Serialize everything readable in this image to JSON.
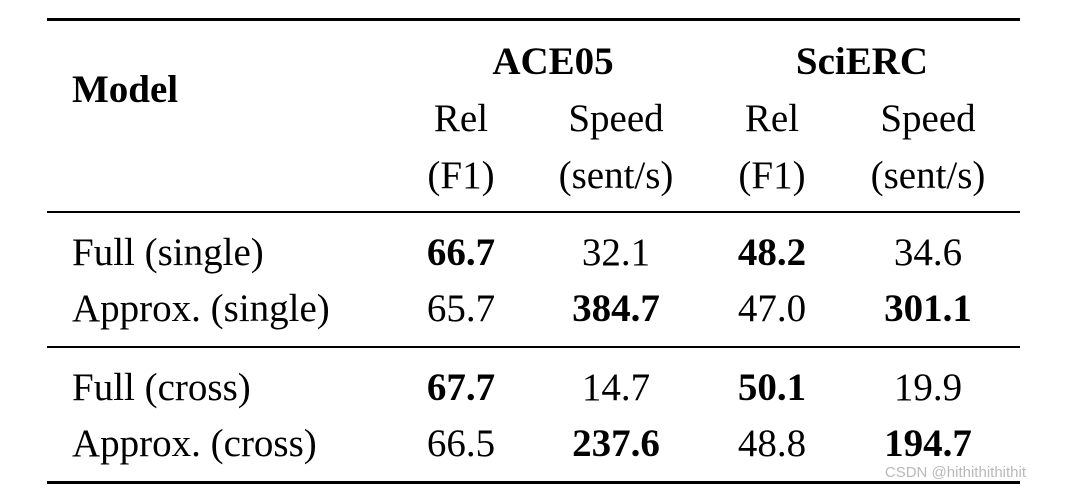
{
  "table": {
    "header": {
      "model": "Model",
      "groups": [
        "ACE05",
        "SciERC"
      ],
      "subcols": [
        {
          "line1": "Rel",
          "line2": "(F1)"
        },
        {
          "line1": "Speed",
          "line2": "(sent/s)"
        },
        {
          "line1": "Rel",
          "line2": "(F1)"
        },
        {
          "line1": "Speed",
          "line2": "(sent/s)"
        }
      ]
    },
    "rows": [
      {
        "model": "Full (single)",
        "cells": [
          "66.7",
          "32.1",
          "48.2",
          "34.6"
        ],
        "bold": [
          true,
          false,
          true,
          false
        ]
      },
      {
        "model": "Approx. (single)",
        "cells": [
          "65.7",
          "384.7",
          "47.0",
          "301.1"
        ],
        "bold": [
          false,
          true,
          false,
          true
        ]
      },
      {
        "model": "Full (cross)",
        "cells": [
          "67.7",
          "14.7",
          "50.1",
          "19.9"
        ],
        "bold": [
          true,
          false,
          true,
          false
        ]
      },
      {
        "model": "Approx. (cross)",
        "cells": [
          "66.5",
          "237.6",
          "48.8",
          "194.7"
        ],
        "bold": [
          false,
          true,
          false,
          true
        ]
      }
    ]
  },
  "watermark": "CSDN @hithithithithit"
}
